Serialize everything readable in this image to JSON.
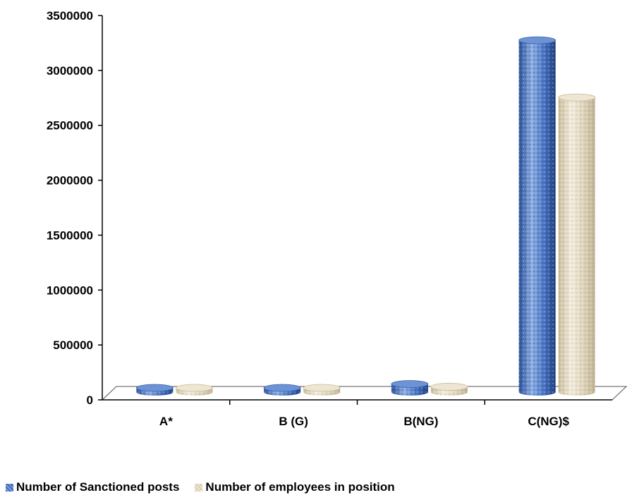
{
  "chart_data": {
    "type": "bar",
    "categories": [
      "A*",
      "B (G)",
      "B(NG)",
      "C(NG)$"
    ],
    "series": [
      {
        "name": "Number of Sanctioned posts",
        "values": [
          95000,
          85000,
          170000,
          3300000
        ]
      },
      {
        "name": "Number of employees in position",
        "values": [
          75000,
          70000,
          145000,
          2780000
        ]
      }
    ],
    "yticks": [
      "3500000",
      "3000000",
      "2500000",
      "2000000",
      "1500000",
      "1000000",
      "500000",
      "0"
    ],
    "ylim": [
      0,
      3500000
    ],
    "title": "",
    "xlabel": "",
    "ylabel": "",
    "legend_position": "bottom-left",
    "grid": false,
    "colors": {
      "series1": "#3c67b5",
      "series2": "#ddd2b8"
    }
  }
}
